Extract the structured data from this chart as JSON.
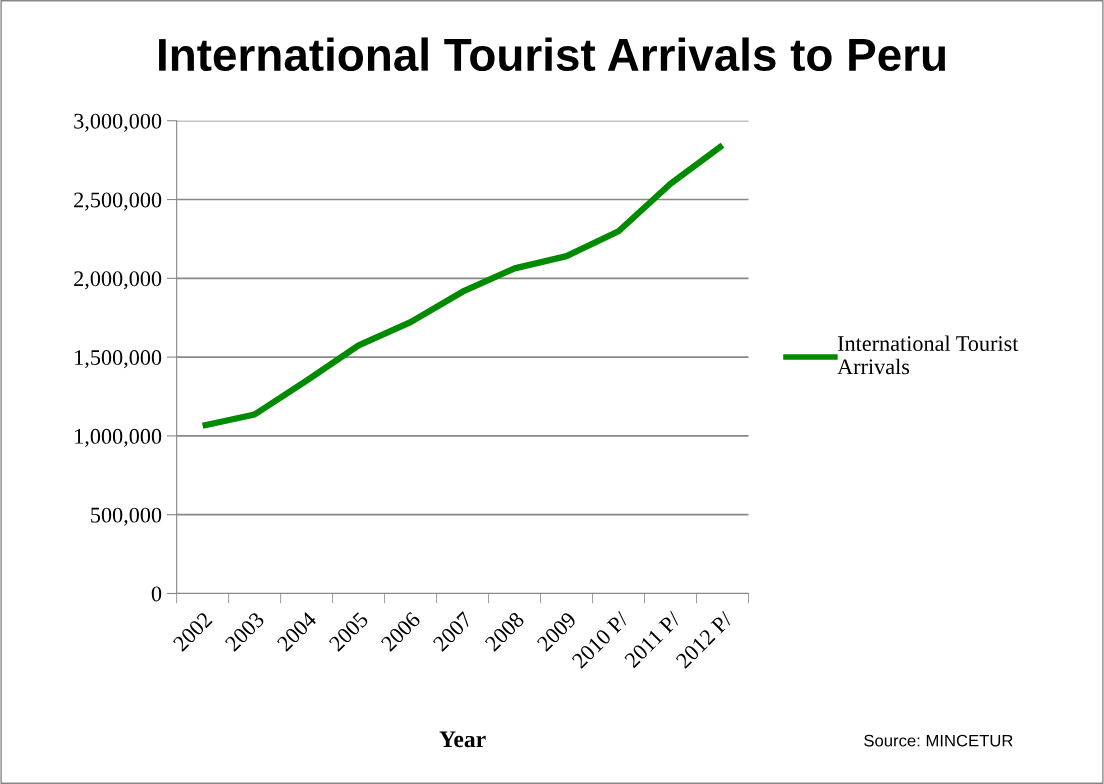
{
  "chart_data": {
    "type": "line",
    "title": "International Tourist Arrivals to Peru",
    "xlabel": "Year",
    "categories": [
      "2002",
      "2003",
      "2004",
      "2005",
      "2006",
      "2007",
      "2008",
      "2009",
      "2010 P/",
      "2011 P/",
      "2012 P/"
    ],
    "series": [
      {
        "name": "International Tourist Arrivals",
        "color": "#008a00",
        "values": [
          1064000,
          1136000,
          1351000,
          1574000,
          1722000,
          1915000,
          2063000,
          2141000,
          2299000,
          2600000,
          2844000
        ]
      }
    ],
    "ylim": [
      0,
      3000000
    ],
    "yticks": [
      {
        "value": 0,
        "label": "0"
      },
      {
        "value": 500000,
        "label": "500,000"
      },
      {
        "value": 1000000,
        "label": "1,000,000"
      },
      {
        "value": 1500000,
        "label": "1,500,000"
      },
      {
        "value": 2000000,
        "label": "2,000,000"
      },
      {
        "value": 2500000,
        "label": "2,500,000"
      },
      {
        "value": 3000000,
        "label": "3,000,000"
      }
    ],
    "grid": "y",
    "legend": "right",
    "marker": "none",
    "line_style": "solid",
    "annotations": [
      "Source: MINCETUR"
    ]
  }
}
